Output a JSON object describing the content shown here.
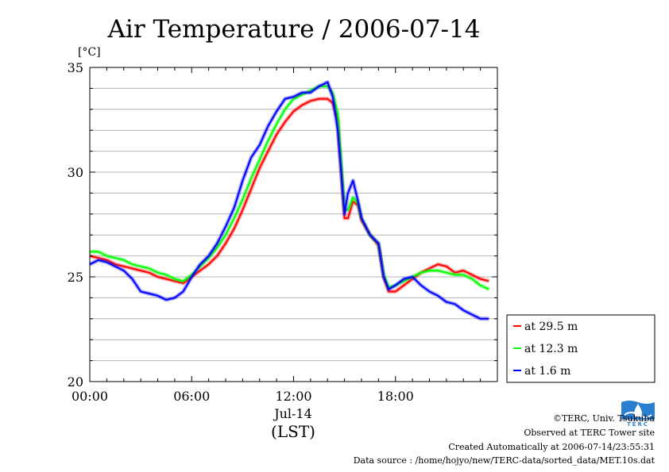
{
  "chart_data": {
    "type": "line",
    "title": "Air Temperature / 2006-07-14",
    "ylabel": "[°C]",
    "ylim": [
      20,
      35
    ],
    "yticks": [
      20,
      25,
      30,
      35
    ],
    "xlim": [
      0,
      24
    ],
    "xticks": [
      {
        "value": 0,
        "label": "00:00"
      },
      {
        "value": 6,
        "label": "06:00"
      },
      {
        "value": 12,
        "label": "12:00"
      },
      {
        "value": 18,
        "label": "18:00"
      }
    ],
    "xlabel_date": "Jul-14",
    "xlabel": "(LST)",
    "grid": true,
    "legend_position": "right-bottom",
    "series": [
      {
        "name": "at 29.5 m",
        "color": "#ff0000",
        "x": [
          0,
          0.5,
          1,
          1.5,
          2,
          2.5,
          3,
          3.5,
          4,
          4.5,
          5,
          5.5,
          6,
          6.5,
          7,
          7.5,
          8,
          8.5,
          9,
          9.5,
          10,
          10.5,
          11,
          11.5,
          12,
          12.5,
          13,
          13.5,
          14,
          14.3,
          14.6,
          14.8,
          15,
          15.2,
          15.5,
          15.8,
          16,
          16.5,
          17,
          17.3,
          17.6,
          18,
          18.5,
          19,
          19.5,
          20,
          20.5,
          21,
          21.5,
          22,
          22.5,
          23,
          23.5
        ],
        "y": [
          26.0,
          25.9,
          25.8,
          25.6,
          25.5,
          25.4,
          25.3,
          25.2,
          25.0,
          24.9,
          24.8,
          24.7,
          25.0,
          25.3,
          25.6,
          26.0,
          26.6,
          27.3,
          28.2,
          29.2,
          30.2,
          31.0,
          31.8,
          32.4,
          32.9,
          33.2,
          33.4,
          33.5,
          33.5,
          33.3,
          32.5,
          30.0,
          27.8,
          27.8,
          28.6,
          28.4,
          27.7,
          27.0,
          26.5,
          25.0,
          24.3,
          24.3,
          24.6,
          24.9,
          25.2,
          25.4,
          25.6,
          25.5,
          25.2,
          25.3,
          25.1,
          24.9,
          24.8
        ]
      },
      {
        "name": "at 12.3 m",
        "color": "#00ff00",
        "x": [
          0,
          0.5,
          1,
          1.5,
          2,
          2.5,
          3,
          3.5,
          4,
          4.5,
          5,
          5.5,
          6,
          6.5,
          7,
          7.5,
          8,
          8.5,
          9,
          9.5,
          10,
          10.5,
          11,
          11.5,
          12,
          12.5,
          13,
          13.5,
          14,
          14.3,
          14.6,
          14.8,
          15,
          15.2,
          15.5,
          15.8,
          16,
          16.5,
          17,
          17.3,
          17.6,
          18,
          18.5,
          19,
          19.5,
          20,
          20.5,
          21,
          21.5,
          22,
          22.5,
          23,
          23.5
        ],
        "y": [
          26.2,
          26.2,
          26.0,
          25.9,
          25.8,
          25.6,
          25.5,
          25.4,
          25.2,
          25.1,
          24.9,
          24.8,
          25.1,
          25.5,
          25.9,
          26.4,
          27.0,
          27.8,
          28.7,
          29.7,
          30.6,
          31.5,
          32.3,
          33.0,
          33.5,
          33.7,
          33.9,
          34.1,
          34.1,
          33.8,
          32.8,
          30.5,
          28.2,
          28.2,
          28.8,
          28.5,
          27.8,
          27.0,
          26.6,
          25.1,
          24.5,
          24.6,
          24.8,
          25.0,
          25.2,
          25.3,
          25.3,
          25.2,
          25.1,
          25.1,
          24.9,
          24.6,
          24.4
        ]
      },
      {
        "name": "at 1.6 m",
        "color": "#0000ff",
        "x": [
          0,
          0.5,
          1,
          1.5,
          2,
          2.5,
          3,
          3.5,
          4,
          4.5,
          5,
          5.5,
          6,
          6.5,
          7,
          7.5,
          8,
          8.5,
          9,
          9.5,
          10,
          10.5,
          11,
          11.5,
          12,
          12.5,
          13,
          13.5,
          14,
          14.3,
          14.6,
          14.8,
          15,
          15.2,
          15.5,
          15.8,
          16,
          16.5,
          17,
          17.3,
          17.6,
          18,
          18.5,
          19,
          19.5,
          20,
          20.5,
          21,
          21.5,
          22,
          22.5,
          23,
          23.5
        ],
        "y": [
          25.6,
          25.8,
          25.7,
          25.5,
          25.3,
          24.9,
          24.3,
          24.2,
          24.1,
          23.9,
          24.0,
          24.3,
          25.0,
          25.6,
          26.0,
          26.6,
          27.4,
          28.3,
          29.6,
          30.7,
          31.3,
          32.2,
          32.9,
          33.5,
          33.6,
          33.8,
          33.8,
          34.1,
          34.3,
          33.6,
          32.0,
          30.0,
          28.0,
          29.0,
          29.6,
          28.6,
          27.8,
          27.0,
          26.6,
          25.0,
          24.4,
          24.6,
          24.9,
          25.0,
          24.6,
          24.3,
          24.1,
          23.8,
          23.7,
          23.4,
          23.2,
          23.0,
          23.0
        ]
      }
    ]
  },
  "credits": {
    "copyright": "©TERC, Univ. Tsukuba",
    "site": "Observed at TERC Tower site",
    "created": "Created Automatically at 2006-07-14/23:55:31",
    "source": "Data source : /home/hojyo/new/TERC-data/sorted_data/MET.10s.dat",
    "logo_text": "TERC"
  }
}
